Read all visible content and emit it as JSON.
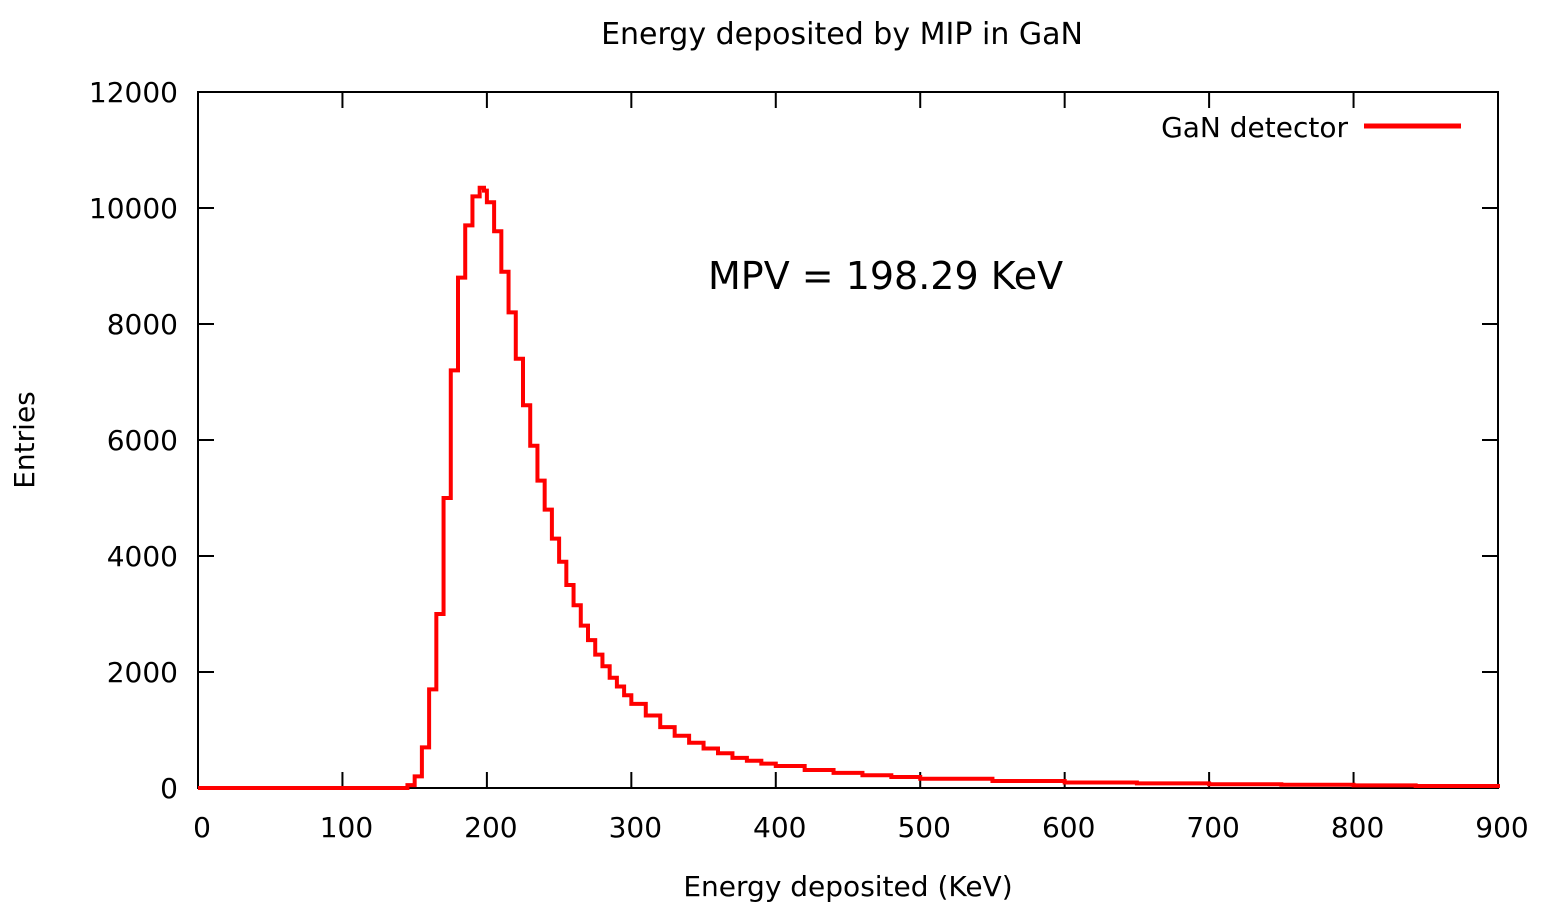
{
  "chart_data": {
    "type": "line",
    "title": "Energy deposited by MIP in GaN",
    "xlabel": "Energy deposited (KeV)",
    "ylabel": "Entries",
    "xlim": [
      0,
      900
    ],
    "ylim": [
      0,
      12000
    ],
    "xticks": [
      "0",
      "100",
      "200",
      "300",
      "400",
      "500",
      "600",
      "700",
      "800",
      "900"
    ],
    "yticks": [
      "0",
      "2000",
      "4000",
      "6000",
      "8000",
      "10000",
      "12000"
    ],
    "grid": false,
    "legend_position": "top-right",
    "annotation": "MPV = 198.29 KeV",
    "annotation_color": "#0000ff",
    "series": [
      {
        "name": "GaN detector",
        "color": "#ff0000",
        "style": "histogram-steps",
        "x": [
          0,
          140,
          145,
          150,
          155,
          160,
          165,
          170,
          175,
          180,
          185,
          190,
          195,
          198,
          200,
          205,
          210,
          215,
          220,
          225,
          230,
          235,
          240,
          245,
          250,
          255,
          260,
          265,
          270,
          275,
          280,
          285,
          290,
          295,
          300,
          310,
          320,
          330,
          340,
          350,
          360,
          370,
          380,
          390,
          400,
          420,
          440,
          460,
          480,
          500,
          550,
          600,
          650,
          700,
          750,
          800,
          843,
          900
        ],
        "y": [
          0,
          0,
          50,
          200,
          700,
          1700,
          3000,
          5000,
          7200,
          8800,
          9700,
          10200,
          10350,
          10300,
          10100,
          9600,
          8900,
          8200,
          7400,
          6600,
          5900,
          5300,
          4800,
          4300,
          3900,
          3500,
          3150,
          2800,
          2550,
          2300,
          2100,
          1900,
          1750,
          1600,
          1450,
          1250,
          1050,
          900,
          780,
          680,
          600,
          520,
          470,
          420,
          380,
          310,
          260,
          220,
          190,
          160,
          120,
          95,
          80,
          65,
          55,
          45,
          35,
          0
        ]
      }
    ]
  }
}
